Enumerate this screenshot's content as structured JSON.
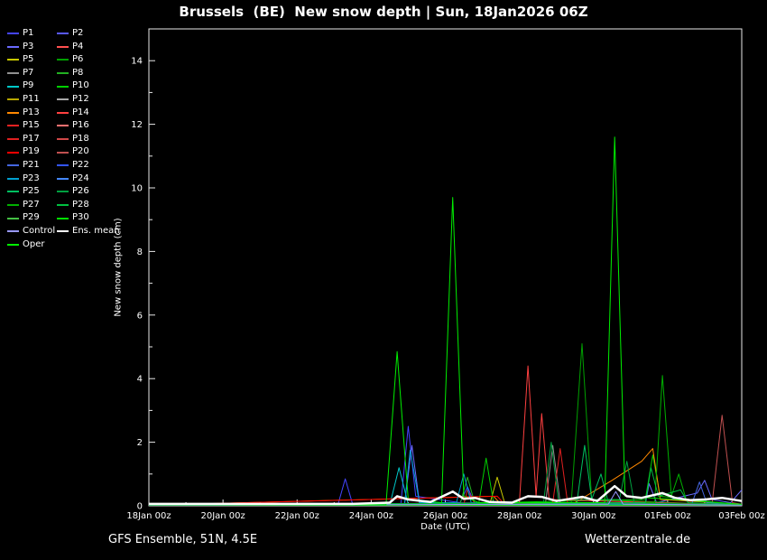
{
  "footer": {
    "left": "GFS Ensemble, 51N, 4.5E",
    "right": "Wetterzentrale.de"
  },
  "chart_data": {
    "type": "line",
    "title": "Brussels  (BE)  New snow depth | Sun, 18Jan2026 06Z",
    "xlabel": "Date (UTC)",
    "ylabel": "New snow depth (cm)",
    "x_unit": "days since 18Jan 00z, 6-hourly",
    "xlim": [
      0,
      16
    ],
    "ylim": [
      0,
      15
    ],
    "background": "#000000",
    "axis_color": "#e8e8e8",
    "legend_position": "top-left, two columns",
    "grid": false,
    "x_ticks": [
      {
        "pos": 0,
        "label": "18Jan 00z"
      },
      {
        "pos": 2,
        "label": "20Jan 00z"
      },
      {
        "pos": 4,
        "label": "22Jan 00z"
      },
      {
        "pos": 6,
        "label": "24Jan 00z"
      },
      {
        "pos": 8,
        "label": "26Jan 00z"
      },
      {
        "pos": 10,
        "label": "28Jan 00z"
      },
      {
        "pos": 12,
        "label": "30Jan 00z"
      },
      {
        "pos": 14,
        "label": "01Feb 00z"
      },
      {
        "pos": 16,
        "label": "03Feb 00z"
      }
    ],
    "y_ticks": [
      0,
      2,
      4,
      6,
      8,
      10,
      12,
      14
    ],
    "series": [
      {
        "name": "P1",
        "color": "#4444ff",
        "points": [
          [
            0,
            0.02
          ],
          [
            5.1,
            0.02
          ],
          [
            5.3,
            0.85
          ],
          [
            5.5,
            0.05
          ],
          [
            6.8,
            0.05
          ],
          [
            7.0,
            2.5
          ],
          [
            7.2,
            0.3
          ],
          [
            8.4,
            0.1
          ],
          [
            8.6,
            0.6
          ],
          [
            8.8,
            0.05
          ],
          [
            16,
            0.02
          ]
        ]
      },
      {
        "name": "P2",
        "color": "#5858ff",
        "points": [
          [
            0,
            0.02
          ],
          [
            16,
            0.02
          ]
        ]
      },
      {
        "name": "P3",
        "color": "#6a6aff",
        "points": [
          [
            0,
            0.02
          ],
          [
            6.9,
            0.05
          ],
          [
            7.1,
            1.9
          ],
          [
            7.3,
            0.1
          ],
          [
            13.4,
            0.05
          ],
          [
            13.5,
            0.7
          ],
          [
            13.7,
            0.1
          ],
          [
            14.8,
            0.4
          ],
          [
            15.0,
            0.8
          ],
          [
            15.2,
            0.2
          ],
          [
            15.7,
            0.1
          ],
          [
            16,
            0.5
          ]
        ]
      },
      {
        "name": "P4",
        "color": "#ff5050",
        "points": [
          [
            0,
            0.02
          ],
          [
            16,
            0.02
          ]
        ]
      },
      {
        "name": "P5",
        "color": "#c8c800",
        "points": [
          [
            0,
            0.02
          ],
          [
            9.2,
            0.05
          ],
          [
            9.4,
            0.9
          ],
          [
            9.6,
            0.1
          ],
          [
            16,
            0.02
          ]
        ]
      },
      {
        "name": "P6",
        "color": "#00a000",
        "points": [
          [
            0,
            0.02
          ],
          [
            11.4,
            0.1
          ],
          [
            11.69,
            5.1
          ],
          [
            11.95,
            0.2
          ],
          [
            16,
            0.02
          ]
        ]
      },
      {
        "name": "P7",
        "color": "#909090",
        "points": [
          [
            0,
            0.02
          ],
          [
            10.7,
            0.05
          ],
          [
            10.9,
            1.9
          ],
          [
            11.1,
            0.1
          ],
          [
            16,
            0.02
          ]
        ]
      },
      {
        "name": "P8",
        "color": "#22b022",
        "points": [
          [
            0,
            0.02
          ],
          [
            8.4,
            0.05
          ],
          [
            8.6,
            0.9
          ],
          [
            8.8,
            0.05
          ],
          [
            16,
            0.02
          ]
        ]
      },
      {
        "name": "P9",
        "color": "#00c8c8",
        "points": [
          [
            0,
            0.02
          ],
          [
            6.5,
            0.02
          ],
          [
            6.75,
            1.2
          ],
          [
            7.0,
            0.05
          ],
          [
            16,
            0.02
          ]
        ]
      },
      {
        "name": "P10",
        "color": "#00d000",
        "points": [
          [
            0,
            0.02
          ],
          [
            8.9,
            0.05
          ],
          [
            9.1,
            1.5
          ],
          [
            9.3,
            0.1
          ],
          [
            13.4,
            0.2
          ],
          [
            13.6,
            1.6
          ],
          [
            13.8,
            0.3
          ],
          [
            16,
            0.02
          ]
        ]
      },
      {
        "name": "P11",
        "color": "#b8a800",
        "points": [
          [
            0,
            0.02
          ],
          [
            16,
            0.02
          ]
        ]
      },
      {
        "name": "P12",
        "color": "#a8a8a8",
        "points": [
          [
            0,
            0.02
          ],
          [
            16,
            0.02
          ]
        ]
      },
      {
        "name": "P13",
        "color": "#ff8800",
        "points": [
          [
            0,
            0.02
          ],
          [
            9.3,
            0.3
          ],
          [
            9.5,
            0.05
          ],
          [
            11.5,
            0.1
          ],
          [
            12.5,
            0.8
          ],
          [
            13.3,
            1.4
          ],
          [
            13.6,
            1.8
          ],
          [
            13.8,
            0.2
          ],
          [
            16,
            0.05
          ]
        ]
      },
      {
        "name": "P14",
        "color": "#ff4040",
        "points": [
          [
            0,
            0.02
          ],
          [
            10.0,
            0.1
          ],
          [
            10.23,
            4.4
          ],
          [
            10.45,
            0.3
          ],
          [
            10.6,
            2.9
          ],
          [
            10.8,
            0.2
          ],
          [
            16,
            0.02
          ]
        ]
      },
      {
        "name": "P15",
        "color": "#ee2222",
        "points": [
          [
            0,
            0.02
          ],
          [
            16,
            0.02
          ]
        ]
      },
      {
        "name": "P16",
        "color": "#ff7070",
        "points": [
          [
            0,
            0.02
          ],
          [
            16,
            0.02
          ]
        ]
      },
      {
        "name": "P17",
        "color": "#e02020",
        "points": [
          [
            0,
            0.02
          ],
          [
            8.5,
            0.05
          ],
          [
            8.6,
            0.5
          ],
          [
            8.8,
            0.05
          ],
          [
            10.9,
            0.1
          ],
          [
            11.1,
            1.8
          ],
          [
            11.3,
            0.1
          ],
          [
            16,
            0.02
          ]
        ]
      },
      {
        "name": "P18",
        "color": "#d04848",
        "points": [
          [
            0,
            0.02
          ],
          [
            16,
            0.02
          ]
        ]
      },
      {
        "name": "P19",
        "color": "#ff0000",
        "points": [
          [
            0,
            0.02
          ],
          [
            9.4,
            0.3
          ],
          [
            9.6,
            0.05
          ],
          [
            16,
            0.02
          ]
        ]
      },
      {
        "name": "P20",
        "color": "#c05050",
        "points": [
          [
            0,
            0.02
          ],
          [
            15.2,
            0.05
          ],
          [
            15.47,
            2.85
          ],
          [
            15.75,
            0.1
          ],
          [
            16,
            0.05
          ]
        ]
      },
      {
        "name": "P21",
        "color": "#4466e0",
        "points": [
          [
            0,
            0.02
          ],
          [
            14.65,
            0.05
          ],
          [
            14.86,
            0.75
          ],
          [
            15.05,
            0.1
          ],
          [
            16,
            0.02
          ]
        ]
      },
      {
        "name": "P22",
        "color": "#3355ff",
        "points": [
          [
            0,
            0.02
          ],
          [
            16,
            0.02
          ]
        ]
      },
      {
        "name": "P23",
        "color": "#00a0d0",
        "points": [
          [
            0,
            0.02
          ],
          [
            6.9,
            0.02
          ],
          [
            7.05,
            1.75
          ],
          [
            7.3,
            0.1
          ],
          [
            8.3,
            0.1
          ],
          [
            8.5,
            1.0
          ],
          [
            8.7,
            0.1
          ],
          [
            16,
            0.02
          ]
        ]
      },
      {
        "name": "P24",
        "color": "#4488ff",
        "points": [
          [
            0,
            0.02
          ],
          [
            16,
            0.02
          ]
        ]
      },
      {
        "name": "P25",
        "color": "#00c060",
        "points": [
          [
            0,
            0.02
          ],
          [
            11.55,
            0.1
          ],
          [
            11.76,
            1.9
          ],
          [
            11.95,
            0.2
          ],
          [
            12.2,
            1.0
          ],
          [
            12.4,
            0.1
          ],
          [
            16,
            0.02
          ]
        ]
      },
      {
        "name": "P26",
        "color": "#00a040",
        "points": [
          [
            0,
            0.02
          ],
          [
            10.65,
            0.1
          ],
          [
            10.86,
            2.0
          ],
          [
            11.05,
            0.2
          ],
          [
            12.7,
            0.2
          ],
          [
            12.9,
            1.4
          ],
          [
            13.1,
            0.1
          ],
          [
            16,
            0.02
          ]
        ]
      },
      {
        "name": "P27",
        "color": "#00b000",
        "points": [
          [
            0,
            0.02
          ],
          [
            13.65,
            0.1
          ],
          [
            13.86,
            4.1
          ],
          [
            14.1,
            0.3
          ],
          [
            14.3,
            1.0
          ],
          [
            14.5,
            0.2
          ],
          [
            16,
            0.02
          ]
        ]
      },
      {
        "name": "P28",
        "color": "#00c040",
        "points": [
          [
            0,
            0.02
          ],
          [
            13.4,
            0.1
          ],
          [
            13.55,
            1.2
          ],
          [
            13.75,
            0.3
          ],
          [
            14.35,
            0.5
          ],
          [
            14.55,
            0.1
          ],
          [
            16,
            0.02
          ]
        ]
      },
      {
        "name": "P29",
        "color": "#44c044",
        "points": [
          [
            0,
            0.02
          ],
          [
            16,
            0.02
          ]
        ]
      },
      {
        "name": "P30",
        "color": "#00e000",
        "points": [
          [
            0,
            0.02
          ],
          [
            16,
            0.02
          ]
        ]
      },
      {
        "name": "Control",
        "color": "#9898ff",
        "points": [
          [
            0,
            0.02
          ],
          [
            12.4,
            0.05
          ],
          [
            12.6,
            0.45
          ],
          [
            12.8,
            0.05
          ],
          [
            16,
            0.02
          ]
        ]
      },
      {
        "name": "Ens. mean",
        "color": "#ffffff",
        "width": 2.5,
        "points": [
          [
            0,
            0.06
          ],
          [
            5.5,
            0.06
          ],
          [
            6.5,
            0.1
          ],
          [
            6.7,
            0.3
          ],
          [
            7.0,
            0.2
          ],
          [
            7.6,
            0.12
          ],
          [
            8.2,
            0.45
          ],
          [
            8.5,
            0.22
          ],
          [
            8.8,
            0.25
          ],
          [
            9.2,
            0.12
          ],
          [
            9.8,
            0.1
          ],
          [
            10.23,
            0.3
          ],
          [
            10.6,
            0.28
          ],
          [
            11.0,
            0.15
          ],
          [
            11.7,
            0.28
          ],
          [
            12.1,
            0.15
          ],
          [
            12.57,
            0.62
          ],
          [
            12.9,
            0.3
          ],
          [
            13.3,
            0.25
          ],
          [
            13.86,
            0.4
          ],
          [
            14.2,
            0.25
          ],
          [
            14.6,
            0.18
          ],
          [
            15.0,
            0.2
          ],
          [
            15.47,
            0.25
          ],
          [
            16,
            0.15
          ]
        ]
      },
      {
        "name": "Oper",
        "color": "#00ee00",
        "points": [
          [
            0,
            0.03
          ],
          [
            6.4,
            0.03
          ],
          [
            6.7,
            4.85
          ],
          [
            7.0,
            0.2
          ],
          [
            7.9,
            0.1
          ],
          [
            8.2,
            9.7
          ],
          [
            8.5,
            0.3
          ],
          [
            8.9,
            0.1
          ],
          [
            12.3,
            0.1
          ],
          [
            12.57,
            11.6
          ],
          [
            12.85,
            0.3
          ],
          [
            16,
            0.05
          ]
        ]
      }
    ]
  }
}
